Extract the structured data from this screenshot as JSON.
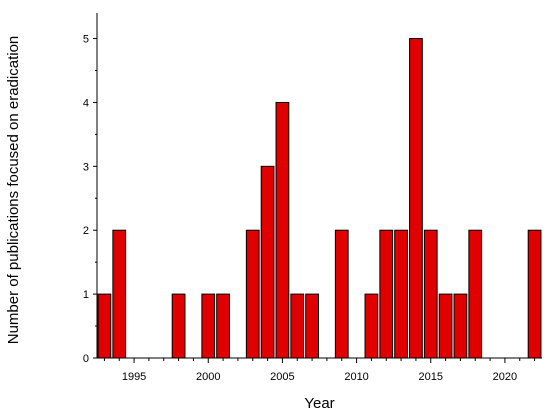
{
  "chart_data": {
    "type": "bar",
    "x": [
      1993,
      1994,
      1995,
      1996,
      1997,
      1998,
      1999,
      2000,
      2001,
      2002,
      2003,
      2004,
      2005,
      2006,
      2007,
      2008,
      2009,
      2010,
      2011,
      2012,
      2013,
      2014,
      2015,
      2016,
      2017,
      2018,
      2019,
      2020,
      2021,
      2022
    ],
    "values": [
      1,
      2,
      0,
      0,
      0,
      1,
      0,
      1,
      1,
      0,
      2,
      3,
      4,
      1,
      1,
      0,
      2,
      0,
      1,
      2,
      2,
      5,
      2,
      1,
      1,
      2,
      0,
      0,
      0,
      2
    ],
    "xlabel": "Year",
    "ylabel": "Number of publications focused on eradication",
    "xlim": [
      1992.5,
      2022.5
    ],
    "ylim": [
      0,
      5.4
    ],
    "x_ticks": [
      "1995",
      "2000",
      "2005",
      "2010",
      "2015",
      "2020"
    ],
    "y_ticks": [
      "0",
      "1",
      "2",
      "3",
      "4",
      "5"
    ],
    "bar_color": "#e00000",
    "grid": false
  }
}
